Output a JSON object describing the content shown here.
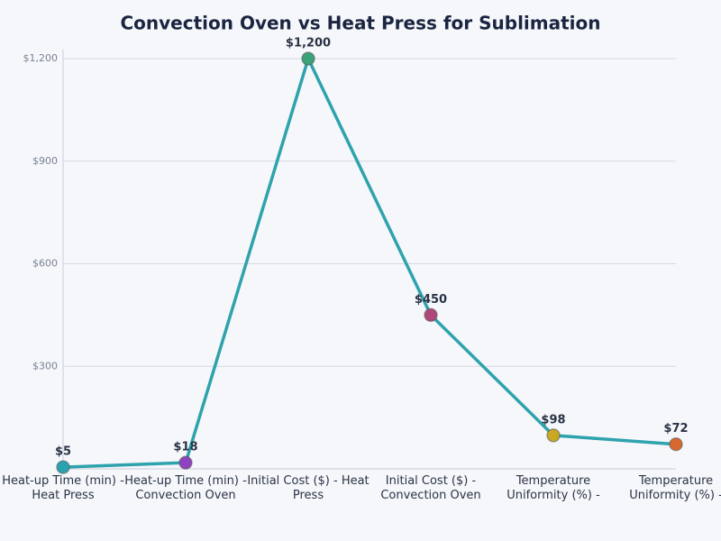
{
  "chart_data": {
    "type": "line",
    "title": "Convection Oven vs Heat Press for Sublimation",
    "categories": [
      "Heat-up Time (min) - Heat Press",
      "Heat-up Time (min) - Convection Oven",
      "Initial Cost ($) - Heat Press",
      "Initial Cost ($) - Convection Oven",
      "Temperature Uniformity (%) -",
      "Temperature Uniformity (%) -"
    ],
    "values": [
      5,
      18,
      1200,
      450,
      98,
      72
    ],
    "value_labels": [
      "$5",
      "$18",
      "$1,200",
      "$450",
      "$98",
      "$72"
    ],
    "color": "#2ea3ad",
    "point_colors": [
      "#2aa3b0",
      "#8e44c0",
      "#3aa37a",
      "#b0477a",
      "#c9a822",
      "#d9692e"
    ],
    "ylim": [
      0,
      1200
    ],
    "yticks": [
      {
        "value": 300,
        "label": "$300"
      },
      {
        "value": 600,
        "label": "$600"
      },
      {
        "value": 900,
        "label": "$900"
      },
      {
        "value": 1200,
        "label": "$1,200"
      }
    ],
    "grid": true
  }
}
